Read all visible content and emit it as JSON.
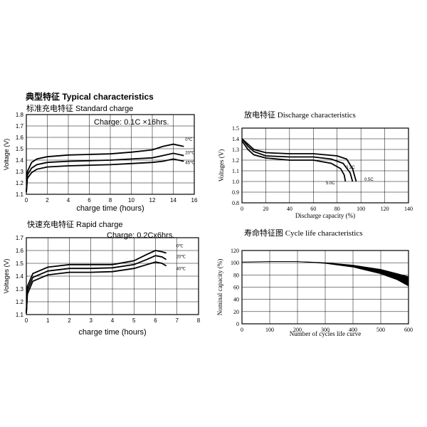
{
  "heading": "典型特征 Typical characteristics",
  "charts": {
    "standard": {
      "subtitle": "标准充电特征 Standard charge",
      "annotation": "Charge: 0.1C ×16hrs.",
      "xlabel": "charge time (hours)",
      "ylabel": "Voltage (V)",
      "series_labels": [
        "0℃",
        "20℃",
        "45℃"
      ]
    },
    "discharge": {
      "subtitle": "放电特征 Discharge characteristics",
      "xlabel": "Discharge capacity (%)",
      "ylabel": "Voltages (V)",
      "series_labels": [
        "0.2C",
        "0.5C",
        "5.0C"
      ]
    },
    "rapid": {
      "subtitle": "快速充电特征 Rapid charge",
      "annotation": "Charge: 0.2Cx6hrs.",
      "xlabel": "charge time (hours)",
      "ylabel": "Voltages (V)",
      "series_labels": [
        "0℃",
        "20℃",
        "40℃"
      ]
    },
    "cycle": {
      "subtitle": "寿命特征图 Cycle life characteristics",
      "xlabel": "Number of cycles life curve",
      "ylabel": "Nominal capacity (%)"
    }
  },
  "chart_data": [
    {
      "id": "standard",
      "type": "line",
      "title": "标准充电特征 Standard charge",
      "xlabel": "charge time (hours)",
      "ylabel": "Voltage (V)",
      "xlim": [
        0,
        16
      ],
      "ylim": [
        1.1,
        1.8
      ],
      "xticks": [
        0,
        2,
        4,
        6,
        8,
        10,
        12,
        14,
        16
      ],
      "yticks": [
        1.1,
        1.2,
        1.3,
        1.4,
        1.5,
        1.6,
        1.7,
        1.8
      ],
      "grid": true,
      "series": [
        {
          "name": "0℃",
          "points": [
            [
              0,
              1.12
            ],
            [
              0.1,
              1.3
            ],
            [
              0.5,
              1.38
            ],
            [
              1,
              1.41
            ],
            [
              2,
              1.43
            ],
            [
              4,
              1.445
            ],
            [
              6,
              1.45
            ],
            [
              8,
              1.455
            ],
            [
              10,
              1.47
            ],
            [
              12,
              1.49
            ],
            [
              13,
              1.52
            ],
            [
              14,
              1.54
            ],
            [
              15,
              1.52
            ]
          ]
        },
        {
          "name": "20℃",
          "points": [
            [
              0,
              1.12
            ],
            [
              0.1,
              1.27
            ],
            [
              0.5,
              1.33
            ],
            [
              1,
              1.36
            ],
            [
              2,
              1.38
            ],
            [
              4,
              1.39
            ],
            [
              6,
              1.395
            ],
            [
              8,
              1.4
            ],
            [
              10,
              1.41
            ],
            [
              12,
              1.42
            ],
            [
              13,
              1.44
            ],
            [
              14,
              1.46
            ],
            [
              15,
              1.44
            ]
          ]
        },
        {
          "name": "45℃",
          "points": [
            [
              0,
              1.12
            ],
            [
              0.1,
              1.24
            ],
            [
              0.5,
              1.29
            ],
            [
              1,
              1.32
            ],
            [
              2,
              1.34
            ],
            [
              4,
              1.35
            ],
            [
              6,
              1.355
            ],
            [
              8,
              1.36
            ],
            [
              10,
              1.37
            ],
            [
              12,
              1.38
            ],
            [
              13,
              1.39
            ],
            [
              14,
              1.41
            ],
            [
              15,
              1.39
            ]
          ]
        }
      ]
    },
    {
      "id": "discharge",
      "type": "line",
      "title": "放电特征 Discharge characteristics",
      "xlabel": "Discharge capacity (%)",
      "ylabel": "Voltages (V)",
      "xlim": [
        0,
        140
      ],
      "ylim": [
        0.8,
        1.5
      ],
      "xticks": [
        0,
        20,
        40,
        60,
        80,
        100,
        120,
        140
      ],
      "yticks": [
        0.8,
        0.9,
        1.0,
        1.1,
        1.2,
        1.3,
        1.4,
        1.5
      ],
      "grid": true,
      "series": [
        {
          "name": "0.2C",
          "points": [
            [
              0,
              1.4
            ],
            [
              5,
              1.35
            ],
            [
              10,
              1.3
            ],
            [
              20,
              1.27
            ],
            [
              40,
              1.26
            ],
            [
              60,
              1.26
            ],
            [
              80,
              1.24
            ],
            [
              88,
              1.21
            ],
            [
              93,
              1.12
            ],
            [
              96,
              1.0
            ]
          ]
        },
        {
          "name": "0.5C",
          "points": [
            [
              0,
              1.4
            ],
            [
              5,
              1.33
            ],
            [
              10,
              1.28
            ],
            [
              20,
              1.24
            ],
            [
              40,
              1.23
            ],
            [
              60,
              1.23
            ],
            [
              75,
              1.21
            ],
            [
              85,
              1.17
            ],
            [
              91,
              1.08
            ],
            [
              93,
              1.0
            ]
          ]
        },
        {
          "name": "5.0C",
          "points": [
            [
              0,
              1.38
            ],
            [
              5,
              1.3
            ],
            [
              10,
              1.25
            ],
            [
              20,
              1.22
            ],
            [
              40,
              1.2
            ],
            [
              60,
              1.2
            ],
            [
              75,
              1.17
            ],
            [
              83,
              1.12
            ],
            [
              86,
              1.06
            ],
            [
              87,
              1.0
            ]
          ]
        }
      ]
    },
    {
      "id": "rapid",
      "type": "line",
      "title": "快速充电特征 Rapid charge",
      "xlabel": "charge time (hours)",
      "ylabel": "Voltages (V)",
      "xlim": [
        0,
        8
      ],
      "ylim": [
        1.1,
        1.7
      ],
      "xticks": [
        0,
        1,
        2,
        3,
        4,
        5,
        6,
        7,
        8
      ],
      "yticks": [
        1.1,
        1.2,
        1.3,
        1.4,
        1.5,
        1.6,
        1.7
      ],
      "grid": true,
      "series": [
        {
          "name": "0℃",
          "points": [
            [
              0,
              1.11
            ],
            [
              0.05,
              1.32
            ],
            [
              0.3,
              1.42
            ],
            [
              1,
              1.47
            ],
            [
              2,
              1.49
            ],
            [
              3,
              1.49
            ],
            [
              4,
              1.49
            ],
            [
              5,
              1.52
            ],
            [
              5.6,
              1.57
            ],
            [
              6,
              1.6
            ],
            [
              6.3,
              1.59
            ],
            [
              6.5,
              1.58
            ]
          ]
        },
        {
          "name": "20℃",
          "points": [
            [
              0,
              1.11
            ],
            [
              0.05,
              1.29
            ],
            [
              0.3,
              1.39
            ],
            [
              1,
              1.44
            ],
            [
              2,
              1.46
            ],
            [
              3,
              1.46
            ],
            [
              4,
              1.465
            ],
            [
              5,
              1.49
            ],
            [
              5.6,
              1.53
            ],
            [
              6,
              1.56
            ],
            [
              6.3,
              1.55
            ],
            [
              6.5,
              1.53
            ]
          ]
        },
        {
          "name": "40℃",
          "points": [
            [
              0,
              1.11
            ],
            [
              0.05,
              1.26
            ],
            [
              0.3,
              1.36
            ],
            [
              1,
              1.41
            ],
            [
              2,
              1.43
            ],
            [
              3,
              1.43
            ],
            [
              4,
              1.435
            ],
            [
              5,
              1.46
            ],
            [
              5.6,
              1.49
            ],
            [
              6,
              1.51
            ],
            [
              6.3,
              1.5
            ],
            [
              6.5,
              1.48
            ]
          ]
        }
      ]
    },
    {
      "id": "cycle",
      "type": "area",
      "title": "寿命特征图 Cycle life characteristics",
      "xlabel": "Number of cycles life curve",
      "ylabel": "Nominal capacity (%)",
      "xlim": [
        0,
        600
      ],
      "ylim": [
        0,
        120
      ],
      "xticks": [
        0,
        100,
        200,
        300,
        400,
        500,
        600
      ],
      "yticks": [
        0,
        20,
        40,
        60,
        80,
        100,
        120
      ],
      "grid": true,
      "series": [
        {
          "name": "",
          "upper": [
            [
              0,
              101
            ],
            [
              100,
              102
            ],
            [
              200,
              102
            ],
            [
              300,
              100
            ],
            [
              400,
              96
            ],
            [
              500,
              89
            ],
            [
              560,
              82
            ],
            [
              600,
              77
            ]
          ],
          "lower": [
            [
              0,
              101
            ],
            [
              100,
              102
            ],
            [
              200,
              102
            ],
            [
              300,
              99
            ],
            [
              400,
              93
            ],
            [
              500,
              82
            ],
            [
              560,
              72
            ],
            [
              600,
              62
            ]
          ]
        }
      ]
    }
  ]
}
